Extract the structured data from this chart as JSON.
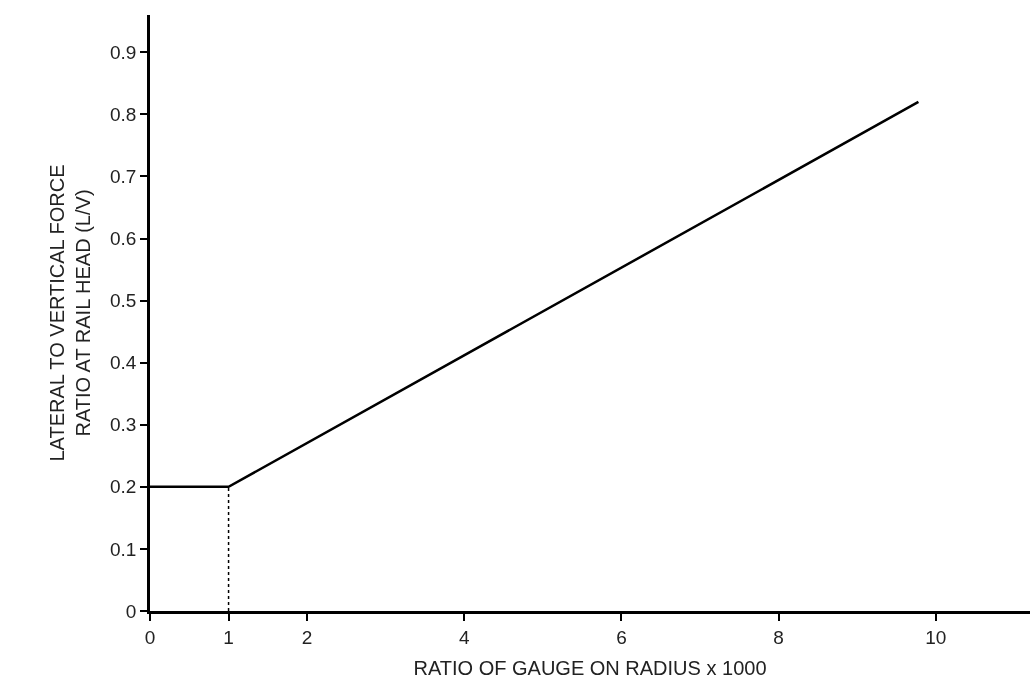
{
  "chart_data": {
    "type": "line",
    "xlabel": "RATIO OF GAUGE ON RADIUS x 1000",
    "ylabel": "LATERAL TO VERTICAL FORCE\nRATIO AT RAIL HEAD (L/V)",
    "series": [
      {
        "color": "#000000",
        "x": [
          0,
          1,
          9.78
        ],
        "values": [
          0.2,
          0.2,
          0.82
        ],
        "line_style": "solid"
      },
      {
        "color": "#000000",
        "x": [
          1,
          1
        ],
        "values": [
          0,
          0.2
        ],
        "line_style": "dotted"
      }
    ],
    "xlim": [
      0,
      11.2
    ],
    "xticks": [
      0,
      1,
      2,
      4,
      6,
      8,
      10
    ],
    "ylim": [
      0,
      0.96
    ],
    "yticks": [
      0,
      0.1,
      0.2,
      0.3,
      0.4,
      0.5,
      0.6,
      0.7,
      0.8,
      0.9
    ],
    "marker": "none"
  }
}
